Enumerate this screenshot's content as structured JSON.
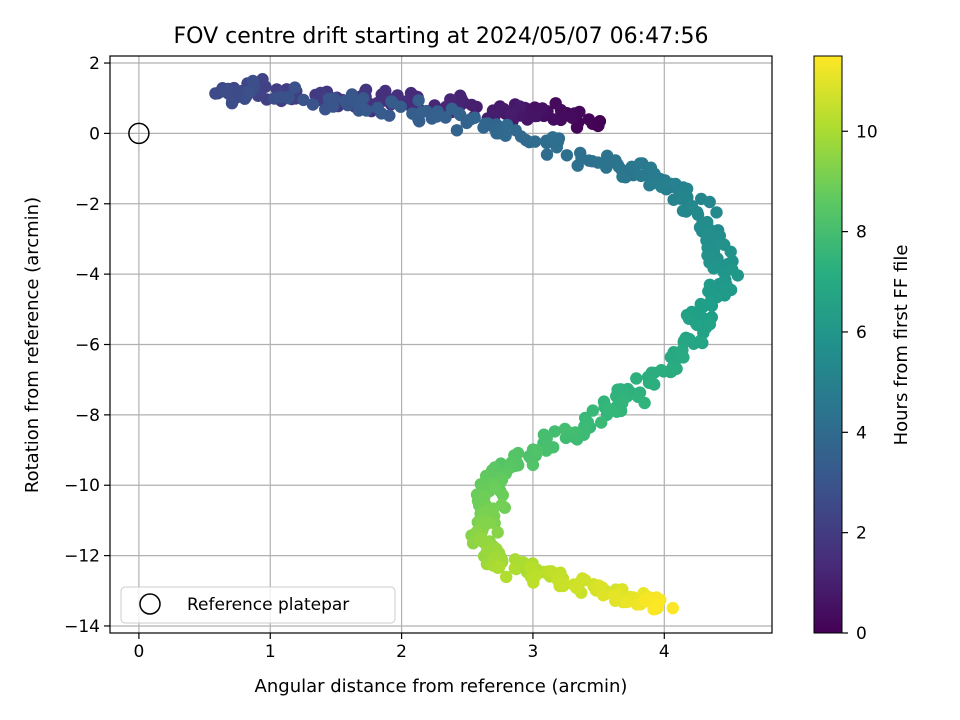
{
  "chart_data": {
    "type": "scatter",
    "title": "FOV centre drift starting at 2024/05/07 06:47:56",
    "xlabel": "Angular distance from reference (arcmin)",
    "ylabel": "Rotation from reference (arcmin)",
    "xlim": [
      -0.22,
      4.82
    ],
    "ylim": [
      -14.2,
      2.2
    ],
    "xticks": [
      0,
      1,
      2,
      3,
      4
    ],
    "yticks": [
      2,
      0,
      -2,
      -4,
      -6,
      -8,
      -10,
      -12,
      -14
    ],
    "xtick_labels": [
      "0",
      "1",
      "2",
      "3",
      "4"
    ],
    "ytick_labels": [
      "2",
      "0",
      "−2",
      "−4",
      "−6",
      "−8",
      "−10",
      "−12",
      "−14"
    ],
    "grid": true,
    "colormap": "viridis",
    "colorbar": {
      "label": "Hours from first FF file",
      "range": [
        0,
        11.5
      ],
      "ticks": [
        0,
        2,
        4,
        6,
        8,
        10
      ],
      "tick_labels": [
        "0",
        "2",
        "4",
        "6",
        "8",
        "10"
      ]
    },
    "reference_point": {
      "x": 0,
      "y": 0
    },
    "legend": {
      "position": "lower-left",
      "label": "Reference platepar"
    },
    "drift_path": [
      {
        "h": 0.0,
        "x": 3.45,
        "y": 0.25
      },
      {
        "h": 0.3,
        "x": 3.25,
        "y": 0.55
      },
      {
        "h": 0.6,
        "x": 2.95,
        "y": 0.55
      },
      {
        "h": 0.9,
        "x": 2.7,
        "y": 0.7
      },
      {
        "h": 1.2,
        "x": 2.3,
        "y": 0.8
      },
      {
        "h": 1.5,
        "x": 1.9,
        "y": 0.95
      },
      {
        "h": 1.8,
        "x": 1.6,
        "y": 1.0
      },
      {
        "h": 2.05,
        "x": 1.2,
        "y": 1.15
      },
      {
        "h": 2.3,
        "x": 0.9,
        "y": 1.2
      },
      {
        "h": 2.55,
        "x": 0.6,
        "y": 1.15
      },
      {
        "h": 2.8,
        "x": 0.9,
        "y": 1.2
      },
      {
        "h": 3.0,
        "x": 1.5,
        "y": 0.9
      },
      {
        "h": 3.25,
        "x": 1.9,
        "y": 0.7
      },
      {
        "h": 3.5,
        "x": 2.3,
        "y": 0.45
      },
      {
        "h": 3.8,
        "x": 2.7,
        "y": 0.2
      },
      {
        "h": 4.05,
        "x": 3.1,
        "y": -0.3
      },
      {
        "h": 4.3,
        "x": 3.5,
        "y": -0.8
      },
      {
        "h": 4.6,
        "x": 3.8,
        "y": -1.1
      },
      {
        "h": 4.9,
        "x": 4.0,
        "y": -1.4
      },
      {
        "h": 5.2,
        "x": 4.2,
        "y": -1.8
      },
      {
        "h": 5.5,
        "x": 4.3,
        "y": -2.6
      },
      {
        "h": 5.8,
        "x": 4.4,
        "y": -3.3
      },
      {
        "h": 6.1,
        "x": 4.45,
        "y": -4.2
      },
      {
        "h": 6.4,
        "x": 4.3,
        "y": -5.0
      },
      {
        "h": 6.7,
        "x": 4.2,
        "y": -5.8
      },
      {
        "h": 7.0,
        "x": 4.05,
        "y": -6.6
      },
      {
        "h": 7.3,
        "x": 3.8,
        "y": -7.3
      },
      {
        "h": 7.6,
        "x": 3.6,
        "y": -7.9
      },
      {
        "h": 7.9,
        "x": 3.3,
        "y": -8.5
      },
      {
        "h": 8.2,
        "x": 3.0,
        "y": -9.0
      },
      {
        "h": 8.5,
        "x": 2.75,
        "y": -9.6
      },
      {
        "h": 8.8,
        "x": 2.65,
        "y": -10.2
      },
      {
        "h": 9.1,
        "x": 2.65,
        "y": -10.8
      },
      {
        "h": 9.4,
        "x": 2.6,
        "y": -11.4
      },
      {
        "h": 9.7,
        "x": 2.7,
        "y": -11.9
      },
      {
        "h": 10.0,
        "x": 2.85,
        "y": -12.3
      },
      {
        "h": 10.3,
        "x": 3.05,
        "y": -12.55
      },
      {
        "h": 10.6,
        "x": 3.35,
        "y": -12.8
      },
      {
        "h": 10.9,
        "x": 3.6,
        "y": -13.05
      },
      {
        "h": 11.2,
        "x": 3.85,
        "y": -13.25
      },
      {
        "h": 11.5,
        "x": 4.0,
        "y": -13.4
      }
    ],
    "n_points": 560,
    "scatter": {
      "x_noise": 0.085,
      "y_noise": 0.2
    }
  }
}
